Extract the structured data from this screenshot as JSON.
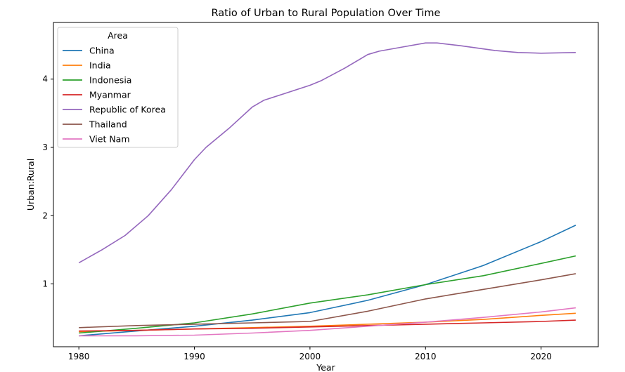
{
  "chart_data": {
    "type": "line",
    "title": "Ratio of Urban to Rural Population Over Time",
    "xlabel": "Year",
    "ylabel": "Urban:Rural",
    "xlim": [
      1977.85,
      1983.0
    ],
    "ylim": [
      0.08,
      4.83
    ],
    "xticks": [
      1980,
      1990,
      2000,
      2010,
      2020
    ],
    "yticks": [
      1,
      2,
      3,
      4
    ],
    "grid": false,
    "legend": {
      "title": "Area",
      "placement": "top-left"
    },
    "series": [
      {
        "name": "China",
        "color": "#1f77b4",
        "x": [
          1980,
          1985,
          1990,
          1995,
          2000,
          2005,
          2010,
          2015,
          2020,
          2023
        ],
        "y": [
          0.24,
          0.31,
          0.38,
          0.47,
          0.58,
          0.76,
          0.99,
          1.27,
          1.62,
          1.86
        ]
      },
      {
        "name": "India",
        "color": "#ff7f0e",
        "x": [
          1980,
          1985,
          1990,
          1995,
          2000,
          2005,
          2010,
          2015,
          2020,
          2023
        ],
        "y": [
          0.3,
          0.32,
          0.34,
          0.36,
          0.38,
          0.41,
          0.44,
          0.48,
          0.54,
          0.57
        ]
      },
      {
        "name": "Indonesia",
        "color": "#2ca02c",
        "x": [
          1980,
          1985,
          1990,
          1995,
          2000,
          2005,
          2010,
          2015,
          2020,
          2023
        ],
        "y": [
          0.28,
          0.35,
          0.43,
          0.56,
          0.72,
          0.84,
          0.99,
          1.12,
          1.3,
          1.41
        ]
      },
      {
        "name": "Myanmar",
        "color": "#d62728",
        "x": [
          1980,
          1985,
          1990,
          1995,
          2000,
          2005,
          2010,
          2015,
          2020,
          2023
        ],
        "y": [
          0.31,
          0.32,
          0.34,
          0.35,
          0.37,
          0.39,
          0.41,
          0.43,
          0.45,
          0.47
        ]
      },
      {
        "name": "Republic of Korea",
        "color": "#9467bd",
        "x": [
          1980,
          1982,
          1984,
          1986,
          1988,
          1990,
          1991,
          1993,
          1995,
          1996,
          1998,
          2000,
          2001,
          2003,
          2005,
          2006,
          2008,
          2010,
          2011,
          2013,
          2016,
          2018,
          2020,
          2023
        ],
        "y": [
          1.31,
          1.5,
          1.71,
          2.0,
          2.38,
          2.82,
          3.0,
          3.28,
          3.59,
          3.69,
          3.8,
          3.91,
          3.98,
          4.16,
          4.36,
          4.41,
          4.47,
          4.53,
          4.53,
          4.49,
          4.42,
          4.39,
          4.38,
          4.39
        ]
      },
      {
        "name": "Thailand",
        "color": "#8c564b",
        "x": [
          1980,
          1985,
          1990,
          1995,
          2000,
          2005,
          2010,
          2015,
          2020,
          2023
        ],
        "y": [
          0.36,
          0.39,
          0.41,
          0.43,
          0.45,
          0.6,
          0.78,
          0.92,
          1.06,
          1.15
        ]
      },
      {
        "name": "Viet Nam",
        "color": "#e377c2",
        "x": [
          1980,
          1985,
          1990,
          1995,
          2000,
          2005,
          2010,
          2015,
          2020,
          2023
        ],
        "y": [
          0.24,
          0.24,
          0.25,
          0.28,
          0.32,
          0.38,
          0.44,
          0.51,
          0.59,
          0.65
        ]
      }
    ]
  }
}
